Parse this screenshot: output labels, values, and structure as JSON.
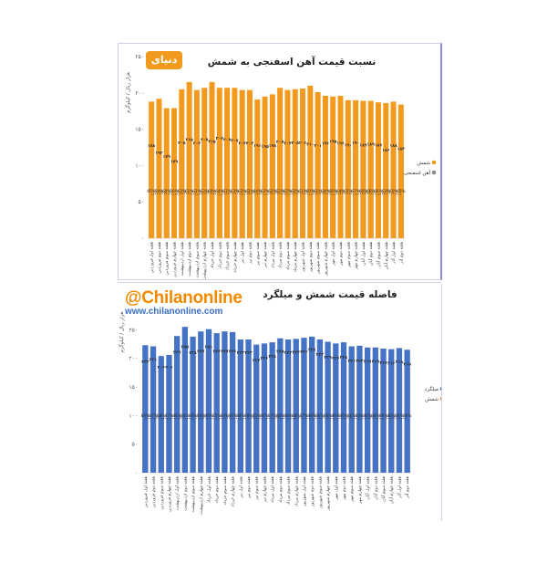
{
  "watermark": {
    "handle": "@Chilanonline",
    "site": "www.chilanonline.com"
  },
  "logo": {
    "text": "دنیای"
  },
  "chart_data": [
    {
      "type": "bar",
      "title": "نسبت قیمت آهن اسفنجی به شمش",
      "ylabel": "هزار ریال / کیلوگرم",
      "ylim": [
        0,
        250
      ],
      "yticks": [
        "۰",
        "۵۰",
        "۱۰۰",
        "۱۵۰",
        "۲۰۰",
        "۲۵۰"
      ],
      "legend": [
        "شمش",
        "آهن اسفنجی"
      ],
      "colors": {
        "شمش": "#f39a1e",
        "آهن اسفنجی": "#8b8b8b"
      },
      "categories": [
        "هفته اول فروردین",
        "هفته دوم فروردین",
        "هفته سوم فروردین",
        "هفته چهارم فروردین",
        "هفته اول اردیبهشت",
        "هفته دوم اردیبهشت",
        "هفته سوم اردیبهشت",
        "هفته چهارم اردیبهشت",
        "هفته اول خرداد",
        "هفته دوم خرداد",
        "هفته سوم خرداد",
        "هفته چهارم خرداد",
        "هفته اول تیر",
        "هفته دوم تیر",
        "هفته سوم تیر",
        "هفته چهارم تیر",
        "هفته اول مرداد",
        "هفته دوم مرداد",
        "هفته سوم مرداد",
        "هفته چهارم مرداد",
        "هفته اول شهریور",
        "هفته دوم شهریور",
        "هفته سوم شهریور",
        "هفته چهارم شهریور",
        "هفته اول مهر",
        "هفته دوم مهر",
        "هفته سوم مهر",
        "هفته چهارم مهر",
        "هفته اول آبان",
        "هفته دوم آبان",
        "هفته سوم آبان",
        "هفته چهارم آبان",
        "هفته اول آذر",
        "هفته دوم آذر"
      ],
      "series": [
        {
          "name": "شمش",
          "values": [
            188,
            192,
            179,
            179,
            205,
            215,
            204,
            207,
            215,
            207,
            207,
            207,
            204,
            204,
            191,
            195,
            198,
            207,
            204,
            205,
            206,
            210,
            201,
            196,
            195,
            196,
            190,
            190,
            189,
            189,
            187,
            186,
            188,
            184
          ]
        },
        {
          "name": "آهن اسفنجی",
          "values": [
            123,
            113,
            108,
            101,
            127,
            131,
            126,
            131,
            129,
            133,
            131,
            130,
            126,
            126,
            123,
            122,
            123,
            128,
            126,
            127,
            127,
            125,
            123,
            126,
            129,
            126,
            124,
            127,
            124,
            125,
            124,
            117,
            123,
            119
          ]
        }
      ],
      "total_labels": [
        "۱۸۸",
        "۱۹۲",
        "۱۷۹",
        "۱۷۹",
        "۲۰۵",
        "۲۱۵",
        "۲۰۴",
        "۲۰۷",
        "۲۱۵",
        "۲۰۷",
        "۲۰۷",
        "۲۰۷",
        "۲۰۴",
        "۲۰۴",
        "۱۹۱",
        "۱۹۵",
        "۱۹۸",
        "۲۰۷",
        "۲۰۴",
        "۲۰۵",
        "۲۰۶",
        "۲۱۰",
        "۲۰۱",
        "۱۹۶",
        "۱۹۵",
        "۱۹۶",
        "۱۹۰",
        "۱۹۰",
        "۱۸۹",
        "۱۸۹",
        "۱۸۷",
        "۱۸۶",
        "۱۸۸",
        "۱۸۴"
      ],
      "ratio_labels": [
        "65%",
        "59%",
        "60%",
        "56%",
        "62%",
        "61%",
        "62%",
        "63%",
        "60%",
        "64%",
        "63%",
        "63%",
        "62%",
        "62%",
        "64%",
        "62%",
        "62%",
        "62%",
        "62%",
        "62%",
        "61%",
        "60%",
        "61%",
        "64%",
        "66%",
        "64%",
        "65%",
        "67%",
        "66%",
        "66%",
        "66%",
        "63%",
        "65%",
        "65%"
      ]
    },
    {
      "type": "bar",
      "title": "فاصله قیمت شمش و میلگرد",
      "ylabel": "هزار ریال / کیلوگرم",
      "ylim": [
        0,
        300
      ],
      "yticks": [
        "۰",
        "۵۰",
        "۱۰۰",
        "۱۵۰",
        "۲۰۰",
        "۲۵۰",
        "۳۰۰"
      ],
      "legend": [
        "میلگرد",
        "شمش"
      ],
      "colors": {
        "میلگرد": "#4472c4",
        "شمش": "#f4883a"
      },
      "categories": [
        "هفته اول فروردین",
        "هفته دوم فروردین",
        "هفته سوم فروردین",
        "هفته چهارم فروردین",
        "هفته اول اردیبهشت",
        "هفته دوم اردیبهشت",
        "هفته سوم اردیبهشت",
        "هفته چهارم اردیبهشت",
        "هفته اول خرداد",
        "هفته دوم خرداد",
        "هفته سوم خرداد",
        "هفته چهارم خرداد",
        "هفته اول تیر",
        "هفته دوم تیر",
        "هفته سوم تیر",
        "هفته چهارم تیر",
        "هفته اول مرداد",
        "هفته دوم مرداد",
        "هفته سوم مرداد",
        "هفته چهارم مرداد",
        "هفته اول شهریور",
        "هفته دوم شهریور",
        "هفته سوم شهریور",
        "هفته چهارم شهریور",
        "هفته اول مهر",
        "هفته دوم مهر",
        "هفته سوم مهر",
        "هفته چهارم مهر",
        "هفته اول آبان",
        "هفته دوم آبان",
        "هفته سوم آبان",
        "هفته چهارم آبان",
        "هفته اول آذر",
        "هفته دوم آذر"
      ],
      "series": [
        {
          "name": "شمش",
          "values": [
            188,
            192,
            179,
            179,
            205,
            215,
            204,
            207,
            215,
            207,
            207,
            207,
            204,
            204,
            191,
            195,
            198,
            207,
            204,
            205,
            206,
            210,
            201,
            196,
            195,
            196,
            190,
            190,
            189,
            189,
            187,
            186,
            188,
            184
          ]
        },
        {
          "name": "میلگرد",
          "values": [
            223,
            221,
            204,
            206,
            239,
            255,
            238,
            247,
            251,
            244,
            247,
            246,
            233,
            233,
            224,
            226,
            228,
            235,
            233,
            234,
            236,
            238,
            233,
            229,
            226,
            228,
            221,
            222,
            219,
            219,
            217,
            216,
            218,
            215
          ]
        }
      ],
      "total_labels": [
        "۲۲۳",
        "۲۲۱",
        "۲۰۴",
        "۲۰۶",
        "۲۳۹",
        "۲۵۵",
        "۲۳۸",
        "۲۴۷",
        "۲۵۱",
        "۲۴۴",
        "۲۴۷",
        "۲۴۶",
        "۲۳۳",
        "۲۳۳",
        "۲۲۴",
        "۲۲۶",
        "۲۲۸",
        "۲۳۵",
        "۲۳۳",
        "۲۳۴",
        "۲۳۶",
        "۲۳۸",
        "۲۳۳",
        "۲۲۹",
        "۲۲۶",
        "۲۲۸",
        "۲۲۱",
        "۲۲۲",
        "۲۱۹",
        "۲۱۹",
        "۲۱۷",
        "۲۱۶",
        "۲۱۸",
        "۲۱۵"
      ],
      "ratio_labels": [
        "84%",
        "87%",
        "88%",
        "87%",
        "86%",
        "84%",
        "86%",
        "84%",
        "86%",
        "85%",
        "84%",
        "84%",
        "88%",
        "88%",
        "85%",
        "86%",
        "87%",
        "88%",
        "88%",
        "88%",
        "87%",
        "88%",
        "86%",
        "86%",
        "86%",
        "86%",
        "86%",
        "86%",
        "86%",
        "86%",
        "86%",
        "86%",
        "86%",
        "86%"
      ]
    }
  ]
}
